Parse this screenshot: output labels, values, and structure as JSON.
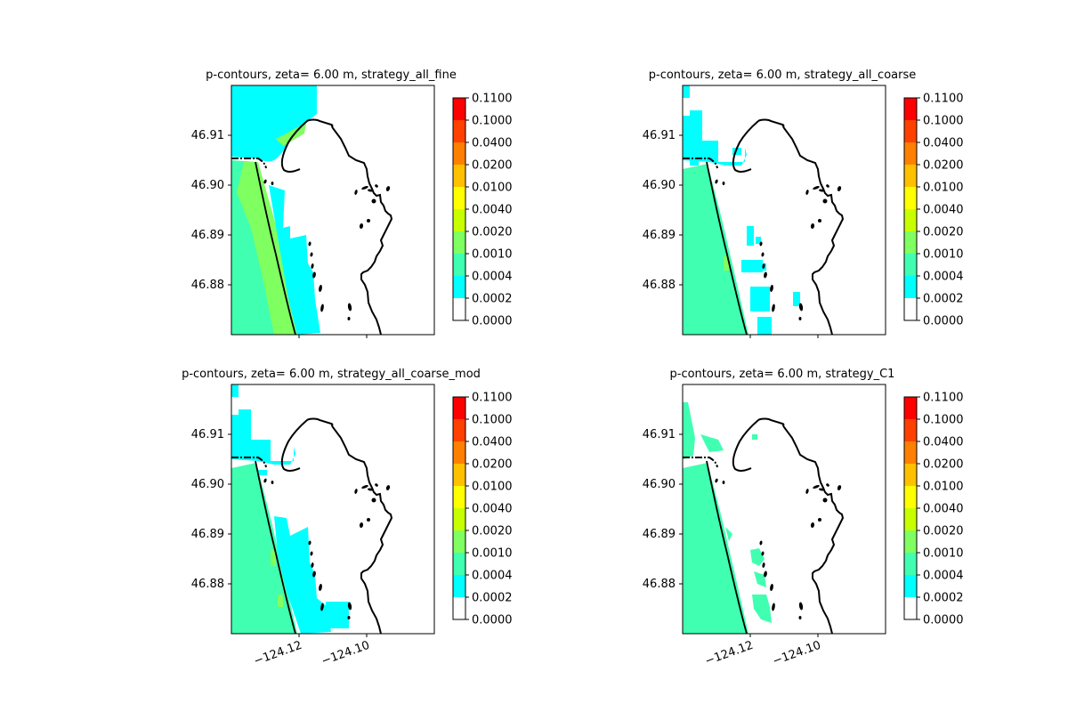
{
  "chart_data": {
    "type": "heatmap",
    "colorbar": {
      "levels": [
        "0.0000",
        "0.0002",
        "0.0004",
        "0.0010",
        "0.0020",
        "0.0040",
        "0.0100",
        "0.0200",
        "0.0400",
        "0.1000",
        "0.1100"
      ],
      "colors": [
        "#ffffff",
        "#00ffff",
        "#40ffb0",
        "#80ff60",
        "#c8ff00",
        "#ffff00",
        "#ffc000",
        "#ff8000",
        "#ff4000",
        "#ff0000"
      ]
    },
    "x_ticks": [
      "−124.12",
      "−124.10"
    ],
    "x_tick_values": [
      -124.12,
      -124.1
    ],
    "xlim": [
      -124.14,
      -124.08
    ],
    "y_ticks": [
      "46.88",
      "46.89",
      "46.90",
      "46.91"
    ],
    "y_tick_values": [
      46.88,
      46.89,
      46.9,
      46.91
    ],
    "ylim": [
      46.87,
      46.92
    ],
    "panels": [
      {
        "title": "p-contours, zeta= 6.00 m, strategy_all_fine",
        "show_xticks": false,
        "style": "fine"
      },
      {
        "title": "p-contours, zeta= 6.00 m, strategy_all_coarse",
        "show_xticks": false,
        "style": "coarse"
      },
      {
        "title": "p-contours, zeta= 6.00 m, strategy_all_coarse_mod",
        "show_xticks": true,
        "style": "coarse_mod"
      },
      {
        "title": "p-contours, zeta= 6.00 m, strategy_C1",
        "show_xticks": true,
        "style": "c1"
      }
    ]
  }
}
